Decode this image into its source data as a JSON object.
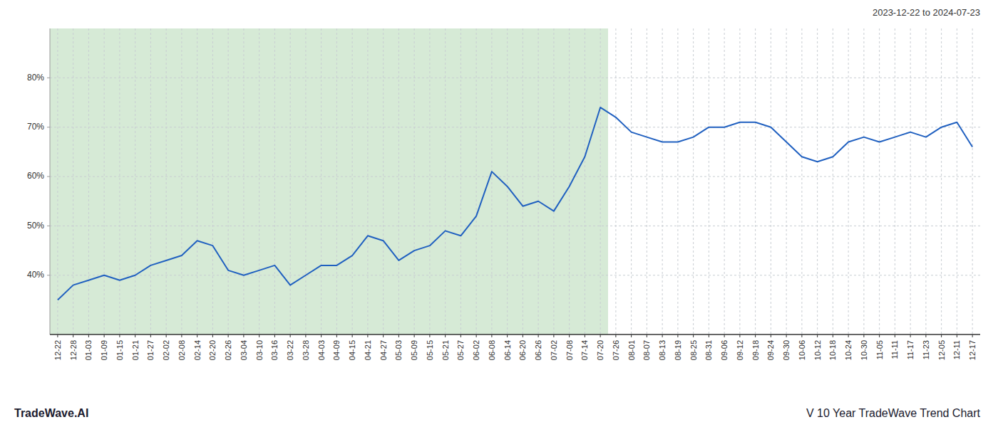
{
  "chart_data": {
    "type": "line",
    "title": "V 10 Year TradeWave Trend Chart",
    "subtitle": "2023-12-22 to 2024-07-23",
    "annotations": [
      "TradeWave.AI"
    ],
    "categories": [
      "12-22",
      "12-28",
      "01-03",
      "01-09",
      "01-15",
      "01-21",
      "01-27",
      "02-02",
      "02-08",
      "02-14",
      "02-20",
      "02-26",
      "03-04",
      "03-10",
      "03-16",
      "03-22",
      "03-28",
      "04-03",
      "04-09",
      "04-15",
      "04-21",
      "04-27",
      "05-03",
      "05-09",
      "05-15",
      "05-21",
      "05-27",
      "06-02",
      "06-08",
      "06-14",
      "06-20",
      "06-26",
      "07-02",
      "07-08",
      "07-14",
      "07-20",
      "07-26",
      "08-01",
      "08-07",
      "08-13",
      "08-19",
      "08-25",
      "08-31",
      "09-06",
      "09-12",
      "09-18",
      "09-24",
      "09-30",
      "10-06",
      "10-12",
      "10-18",
      "10-24",
      "10-30",
      "11-05",
      "11-11",
      "11-17",
      "11-23",
      "12-05",
      "12-11",
      "12-17"
    ],
    "values": [
      35,
      38,
      39,
      40,
      39,
      40,
      42,
      43,
      44,
      47,
      46,
      41,
      40,
      41,
      42,
      38,
      40,
      42,
      42,
      44,
      48,
      47,
      43,
      45,
      46,
      49,
      48,
      52,
      61,
      58,
      54,
      55,
      53,
      58,
      64,
      74,
      72,
      69,
      68,
      67,
      67,
      68,
      70,
      70,
      71,
      71,
      70,
      67,
      64,
      63,
      64,
      67,
      68,
      67,
      68,
      69,
      68,
      70,
      71,
      66
    ],
    "color": "#2060c0",
    "shaded_region": {
      "end": "07-20",
      "color": "#d6ead6"
    },
    "ylim": [
      28,
      90
    ],
    "yticks": [
      {
        "value": 40,
        "label": "40%"
      },
      {
        "value": 50,
        "label": "50%"
      },
      {
        "value": 60,
        "label": "60%"
      },
      {
        "value": 70,
        "label": "70%"
      },
      {
        "value": 80,
        "label": "80%"
      }
    ],
    "grid": true
  }
}
